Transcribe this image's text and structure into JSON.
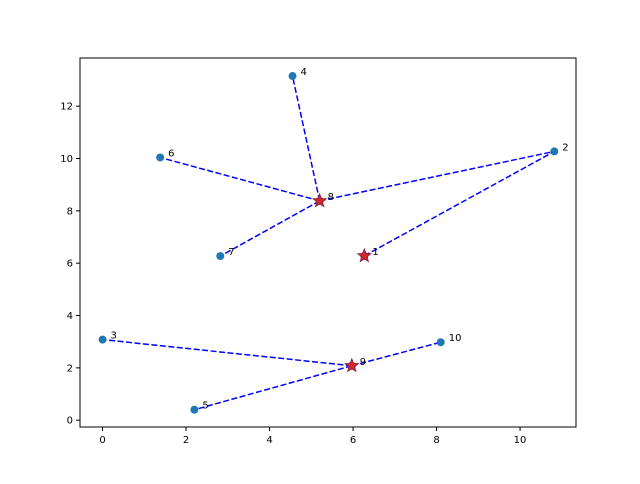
{
  "chart_data": {
    "type": "scatter",
    "title": "",
    "xlabel": "",
    "ylabel": "",
    "xlim": [
      -0.54,
      11.34
    ],
    "ylim": [
      -0.26,
      13.84
    ],
    "xticks": [
      0,
      2,
      4,
      6,
      8,
      10
    ],
    "yticks": [
      0,
      2,
      4,
      6,
      8,
      10,
      12
    ],
    "xtick_labels": [
      "0",
      "2",
      "4",
      "6",
      "8",
      "10"
    ],
    "ytick_labels": [
      "0",
      "2",
      "4",
      "6",
      "8",
      "10",
      "12"
    ],
    "grid": false,
    "legend": "none",
    "points": [
      {
        "label": "1",
        "x": 6.27,
        "y": 6.28,
        "center": true
      },
      {
        "label": "2",
        "x": 10.82,
        "y": 10.27,
        "center": false
      },
      {
        "label": "3",
        "x": 0.0,
        "y": 3.08,
        "center": false
      },
      {
        "label": "4",
        "x": 4.55,
        "y": 13.15,
        "center": false
      },
      {
        "label": "5",
        "x": 2.2,
        "y": 0.4,
        "center": false
      },
      {
        "label": "6",
        "x": 1.38,
        "y": 10.04,
        "center": false
      },
      {
        "label": "7",
        "x": 2.82,
        "y": 6.27,
        "center": false
      },
      {
        "label": "8",
        "x": 5.2,
        "y": 8.38,
        "center": true
      },
      {
        "label": "9",
        "x": 5.97,
        "y": 2.08,
        "center": true
      },
      {
        "label": "10",
        "x": 8.1,
        "y": 2.98,
        "center": false
      }
    ],
    "links": [
      [
        "1",
        "2"
      ],
      [
        "8",
        "4"
      ],
      [
        "8",
        "6"
      ],
      [
        "8",
        "7"
      ],
      [
        "8",
        "2"
      ],
      [
        "9",
        "3"
      ],
      [
        "9",
        "5"
      ],
      [
        "9",
        "10"
      ]
    ],
    "colors": {
      "point": "#1f77b4",
      "center": "#d62728",
      "center_edge": "#8b1a3a",
      "link": "#0000ff",
      "axes": "#000000"
    }
  }
}
